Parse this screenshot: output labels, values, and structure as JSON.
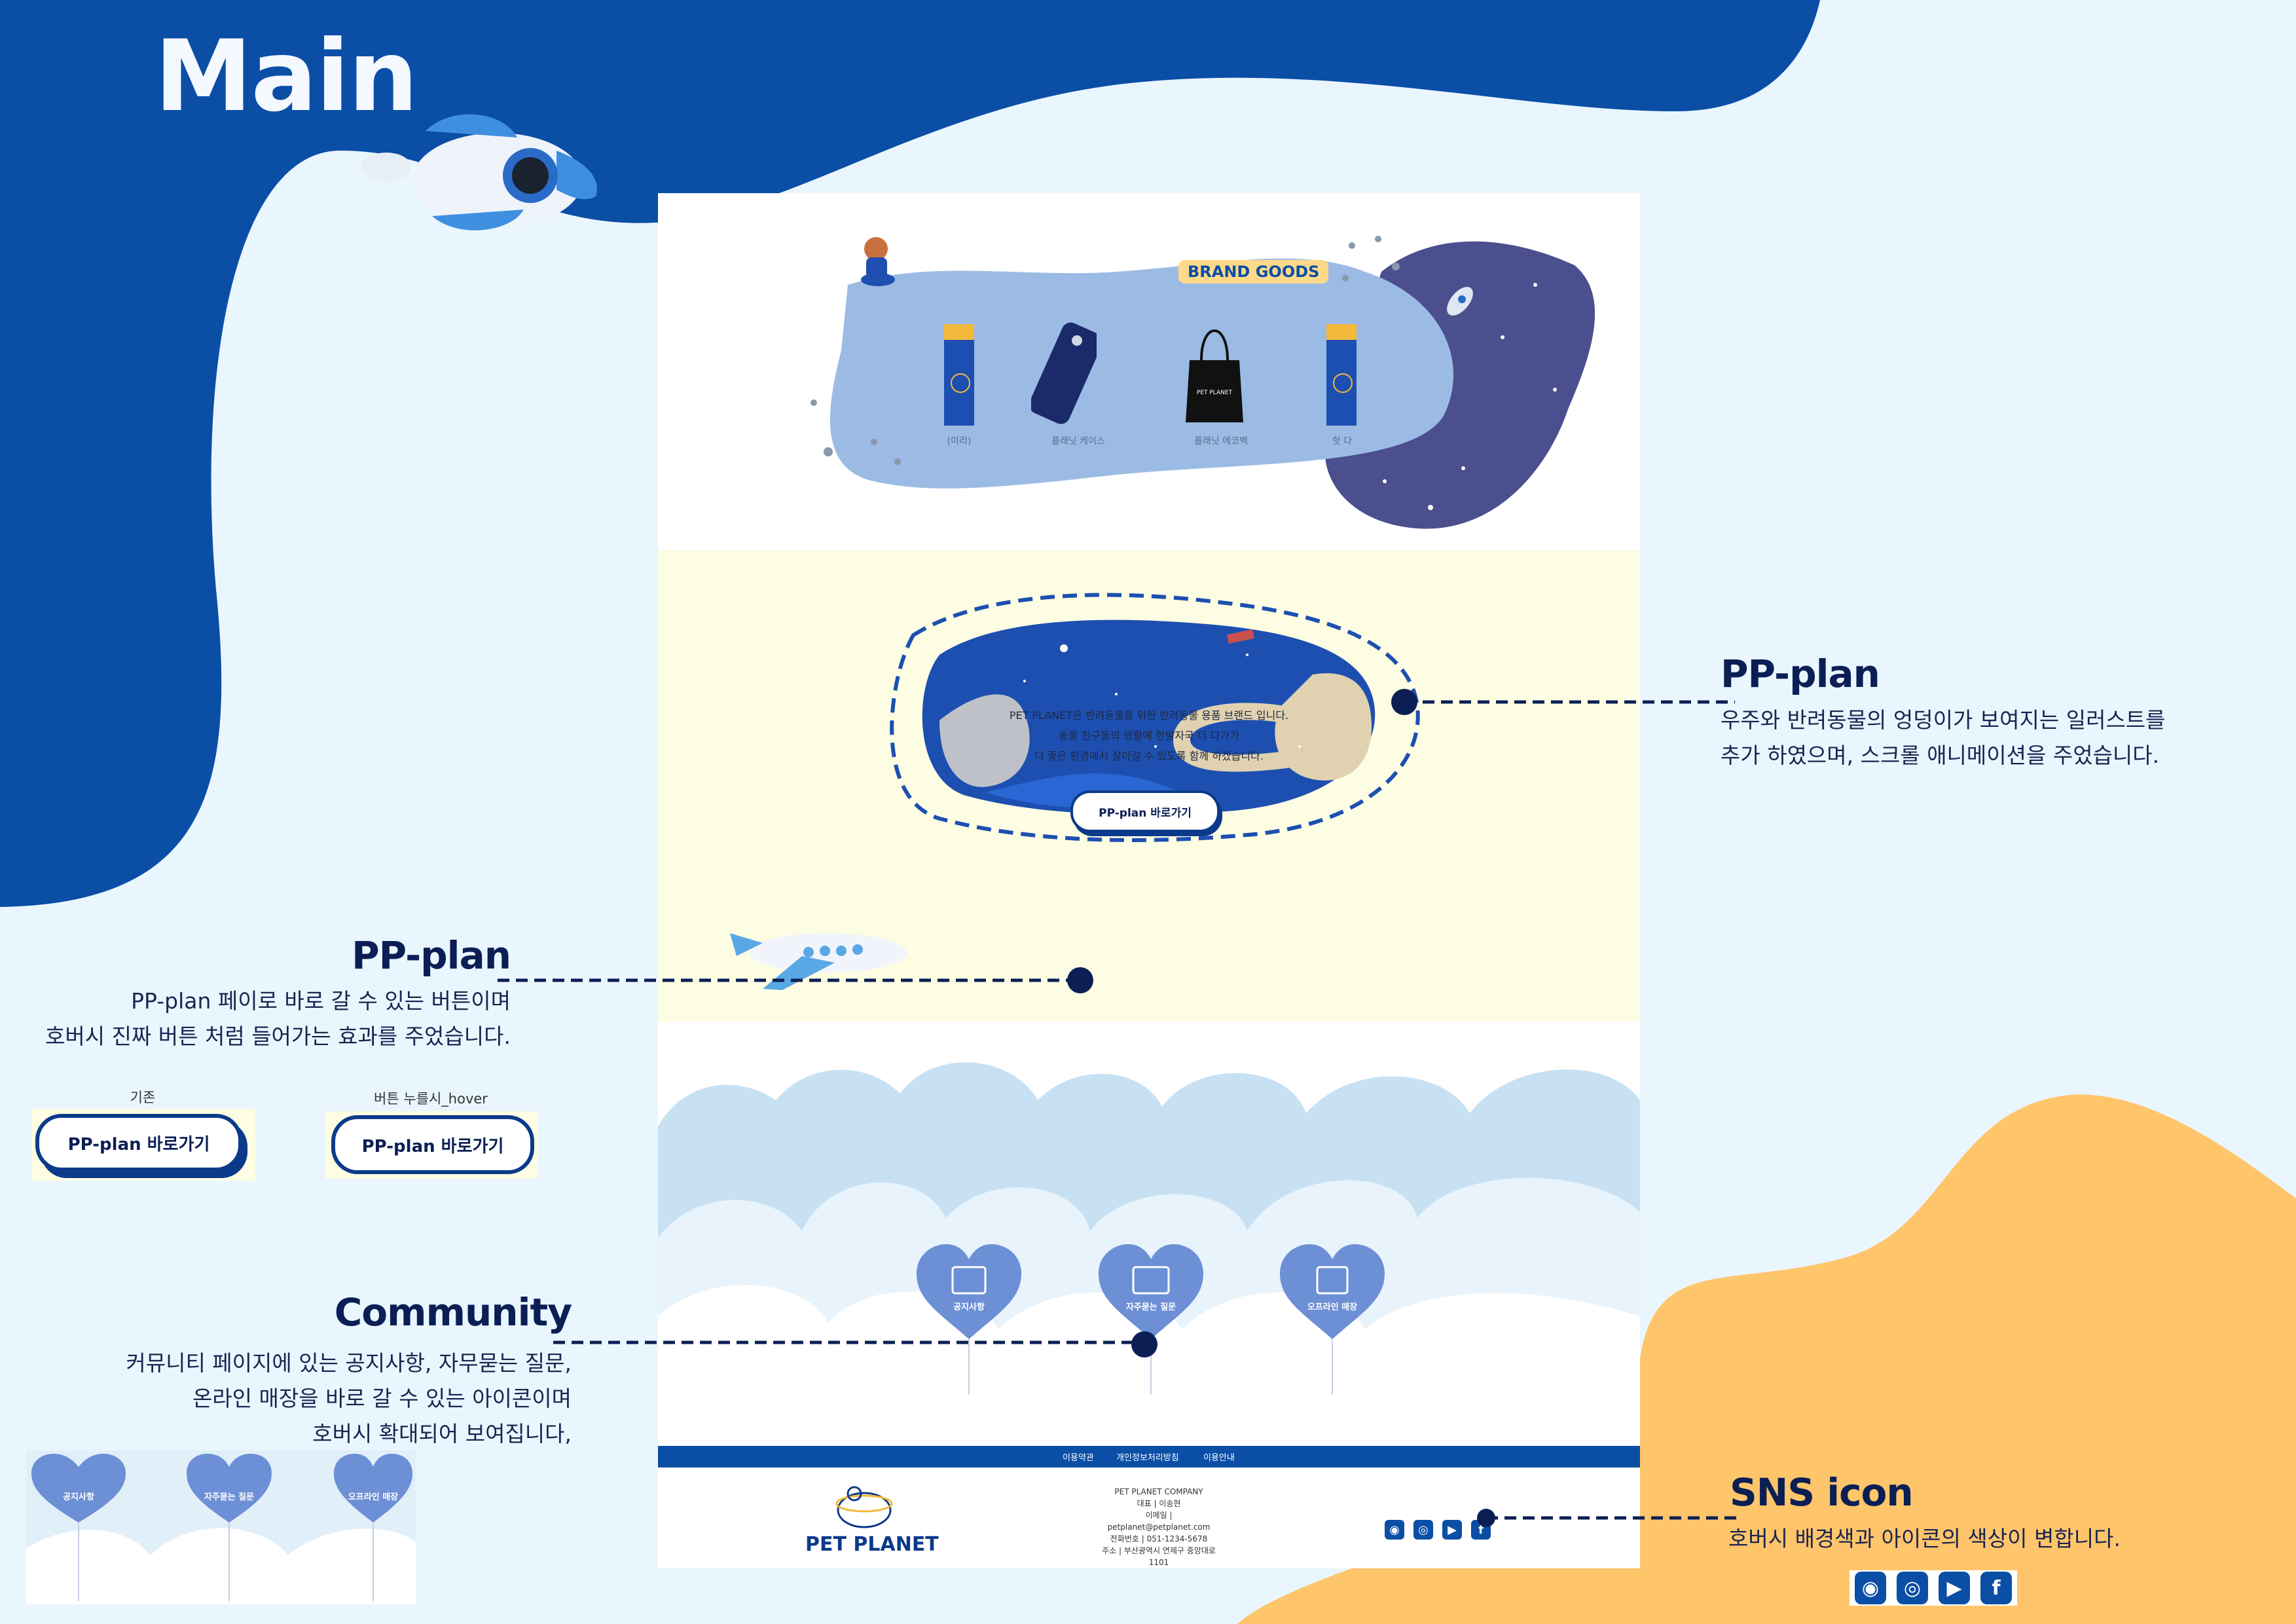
{
  "colors": {
    "primary_blue": "#0b4ea6",
    "navy": "#0b1f55",
    "background": "#eaf6fe",
    "accent_orange": "#ffc56b",
    "cream": "#fdfde3"
  },
  "main_title": "Main",
  "brand_goods": {
    "badge": "BRAND GOODS",
    "items": [
      {
        "label": "(이리)",
        "icon": "bookmark-icon"
      },
      {
        "label": "플래닛 케이스",
        "icon": "phone-case-icon"
      },
      {
        "label": "플래닛 에코백",
        "icon": "tote-bag-icon"
      },
      {
        "label": "핫 다",
        "icon": "bookmark-icon"
      }
    ]
  },
  "plan_section": {
    "intro_lines": [
      "PET PLANET은 반려동물을 위한 반려동물 용품 브랜드 입니다.",
      "동물 친구들의 생활에 한발자국 더 다가가",
      "더 좋은 환경에서 살아갈 수 있도록 함께 하겠습니다."
    ],
    "button_label": "PP-plan 바로가기"
  },
  "community": {
    "items": [
      {
        "label": "공지사항",
        "icon": "notice-icon"
      },
      {
        "label": "자주묻는 질문",
        "icon": "faq-icon"
      },
      {
        "label": "오프라인 매장",
        "icon": "store-icon"
      }
    ]
  },
  "footer": {
    "nav": [
      "이용약관",
      "개인정보처리방침",
      "이용안내"
    ],
    "brand": "PET PLANET",
    "info_lines": [
      "PET PLANET COMPANY",
      "대표 | 이송현",
      "이메일 | petplanet@petplanet.com",
      "전화번호 | 051-1234-5678",
      "주소 | 부산광역시 연제구 중앙대로 1101"
    ],
    "sns": [
      "talk-icon",
      "instagram-icon",
      "youtube-icon",
      "facebook-icon"
    ]
  },
  "annotations": {
    "pp_plan_right": {
      "title": "PP-plan",
      "desc": [
        "우주와 반려동물의 엉덩이가 보여지는 일러스트를",
        "추가 하였으며, 스크롤 애니메이션을 주었습니다."
      ]
    },
    "pp_plan_left": {
      "title": "PP-plan",
      "desc": [
        "PP-plan 페이로 바로 갈 수 있는 버튼이며",
        "호버시 진짜 버튼 처럼 들어가는 효과를 주었습니다."
      ],
      "demo_default_caption": "기존",
      "demo_hover_caption": "버튼 누를시_hover",
      "demo_button_label": "PP-plan 바로가기"
    },
    "community": {
      "title": "Community",
      "desc": [
        "커뮤니티 페이지에 있는 공지사항, 자무묻는 질문,",
        "온라인 매장을 바로 갈 수 있는 아이콘이며",
        "호버시 확대되어 보여집니다,"
      ]
    },
    "sns": {
      "title": "SNS icon",
      "desc": "호버시 배경색과 아이콘의 색상이 변합니다."
    }
  }
}
